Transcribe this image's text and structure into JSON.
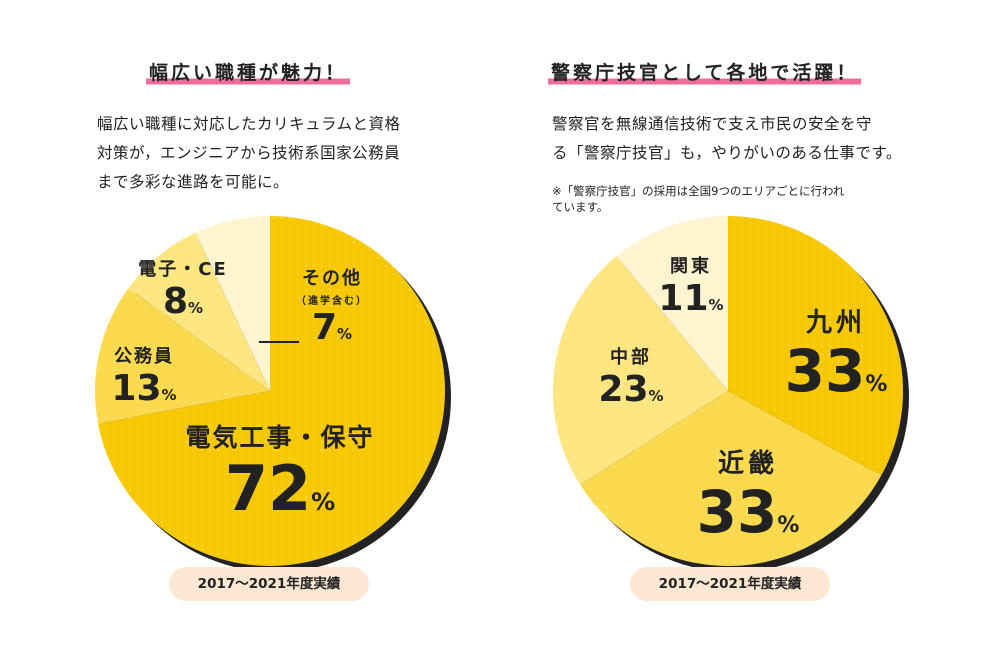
{
  "left": {
    "heading": "幅広い職種が魅力！",
    "body_lines": [
      "幅広い職種に対応したカリキュラムと資格",
      "対策が，エンジニアから技術系国家公務員",
      "まで多彩な進路を可能に。"
    ],
    "footnote": "2017〜2021年度実績"
  },
  "right": {
    "heading": "警察庁技官として各地で活躍！",
    "body_lines": [
      "警察官を無線通信技術で支え市民の安全を守",
      "る「警察庁技官」も，やりがいのある仕事です。"
    ],
    "note_lines": [
      "※「警察庁技官」の採用は全国9つのエリアごとに行われ",
      "ています。"
    ],
    "footnote": "2017〜2021年度実績"
  },
  "chart_data": [
    {
      "type": "pie",
      "title": "",
      "unit": "%",
      "slices": [
        {
          "label": "電気工事・保守",
          "value": 72,
          "color": "#f7c800"
        },
        {
          "label": "公務員",
          "value": 13,
          "color": "#fbd94c"
        },
        {
          "label": "電子・CE",
          "value": 8,
          "color": "#fde680"
        },
        {
          "label": "その他",
          "sublabel": "（進学含む）",
          "value": 7,
          "color": "#fef4cf"
        }
      ],
      "start": "12 o'clock, clockwise",
      "pattern": "dotted"
    },
    {
      "type": "pie",
      "title": "",
      "unit": "%",
      "slices": [
        {
          "label": "九州",
          "value": 33,
          "color": "#f7c800"
        },
        {
          "label": "近畿",
          "value": 33,
          "color": "#fbd94c"
        },
        {
          "label": "中部",
          "value": 23,
          "color": "#fde680"
        },
        {
          "label": "関東",
          "value": 11,
          "color": "#fef4cf"
        }
      ],
      "start": "12 o'clock, clockwise",
      "pattern": "dotted"
    }
  ]
}
